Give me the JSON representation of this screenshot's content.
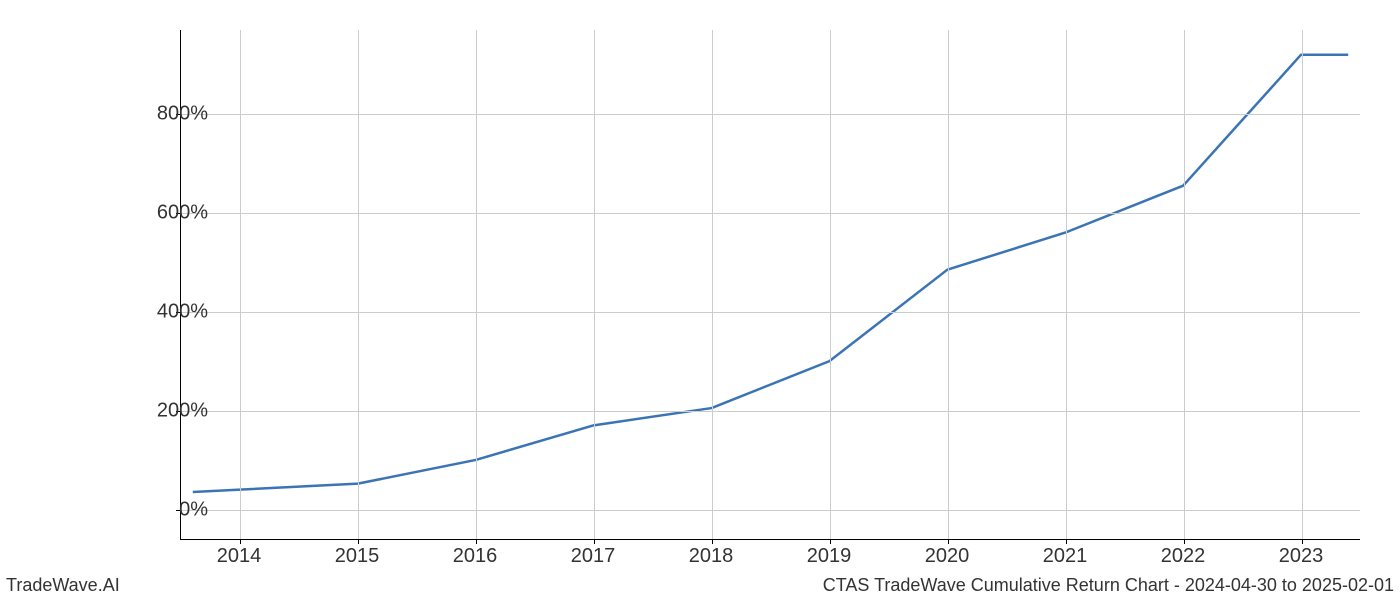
{
  "chart": {
    "type": "line",
    "background_color": "#ffffff",
    "grid_color": "#cccccc",
    "axis_color": "#000000",
    "line_color": "#3b74b4",
    "line_width": 2.5,
    "tick_fontsize": 20,
    "tick_color": "#333333",
    "xlim": [
      2013.5,
      2023.5
    ],
    "ylim": [
      -60,
      970
    ],
    "x_ticks": [
      2014,
      2015,
      2016,
      2017,
      2018,
      2019,
      2020,
      2021,
      2022,
      2023
    ],
    "x_tick_labels": [
      "2014",
      "2015",
      "2016",
      "2017",
      "2018",
      "2019",
      "2020",
      "2021",
      "2022",
      "2023"
    ],
    "y_ticks": [
      0,
      200,
      400,
      600,
      800
    ],
    "y_tick_labels": [
      "0%",
      "200%",
      "400%",
      "600%",
      "800%"
    ],
    "data_x": [
      2013.6,
      2014,
      2015,
      2016,
      2017,
      2018,
      2019,
      2020,
      2021,
      2022,
      2023,
      2023.4
    ],
    "data_y": [
      35,
      40,
      52,
      100,
      170,
      205,
      300,
      485,
      560,
      655,
      920,
      920
    ]
  },
  "footer": {
    "left": "TradeWave.AI",
    "right": "CTAS TradeWave Cumulative Return Chart - 2024-04-30 to 2025-02-01"
  }
}
